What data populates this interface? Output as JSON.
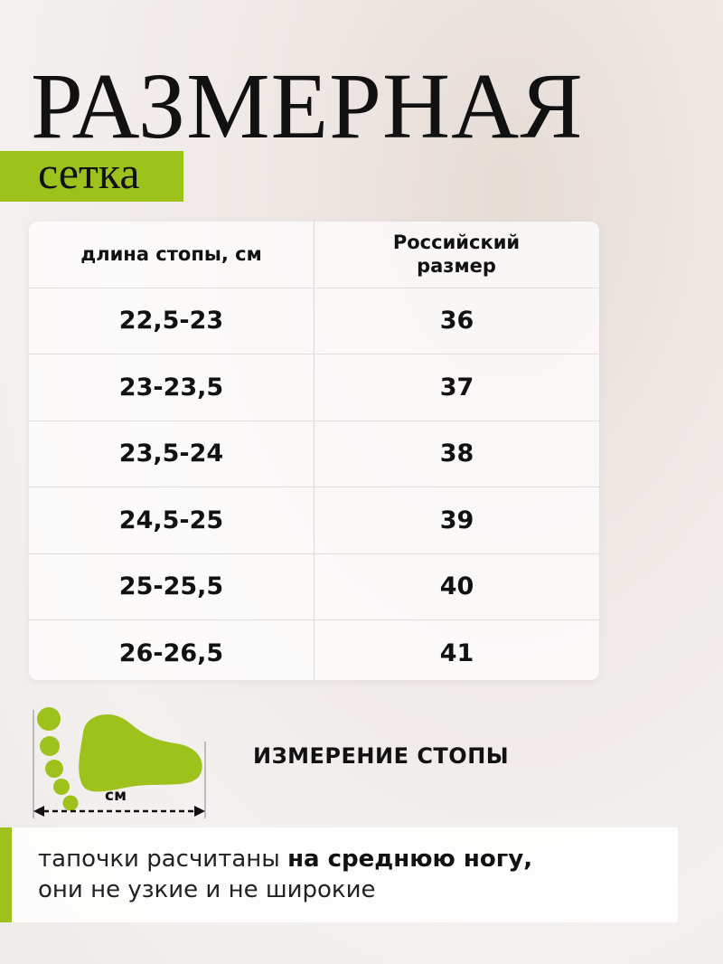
{
  "title": "РАЗМЕРНАЯ",
  "subtitle": "сетка",
  "accent_color": "#9dc21c",
  "table": {
    "headers": [
      "длина стопы, см",
      "Российский размер"
    ],
    "rows": [
      [
        "22,5-23",
        "36"
      ],
      [
        "23-23,5",
        "37"
      ],
      [
        "23,5-24",
        "38"
      ],
      [
        "24,5-25",
        "39"
      ],
      [
        "25-25,5",
        "40"
      ],
      [
        "26-26,5",
        "41"
      ]
    ]
  },
  "foot_icon": {
    "icon": "foot-icon",
    "unit_label": "см"
  },
  "measure_label": "ИЗМЕРЕНИЕ СТОПЫ",
  "note": {
    "line1_plain": "тапочки расчитаны ",
    "line1_bold": "на среднюю ногу,",
    "line2": "они не узкие и не широкие"
  }
}
